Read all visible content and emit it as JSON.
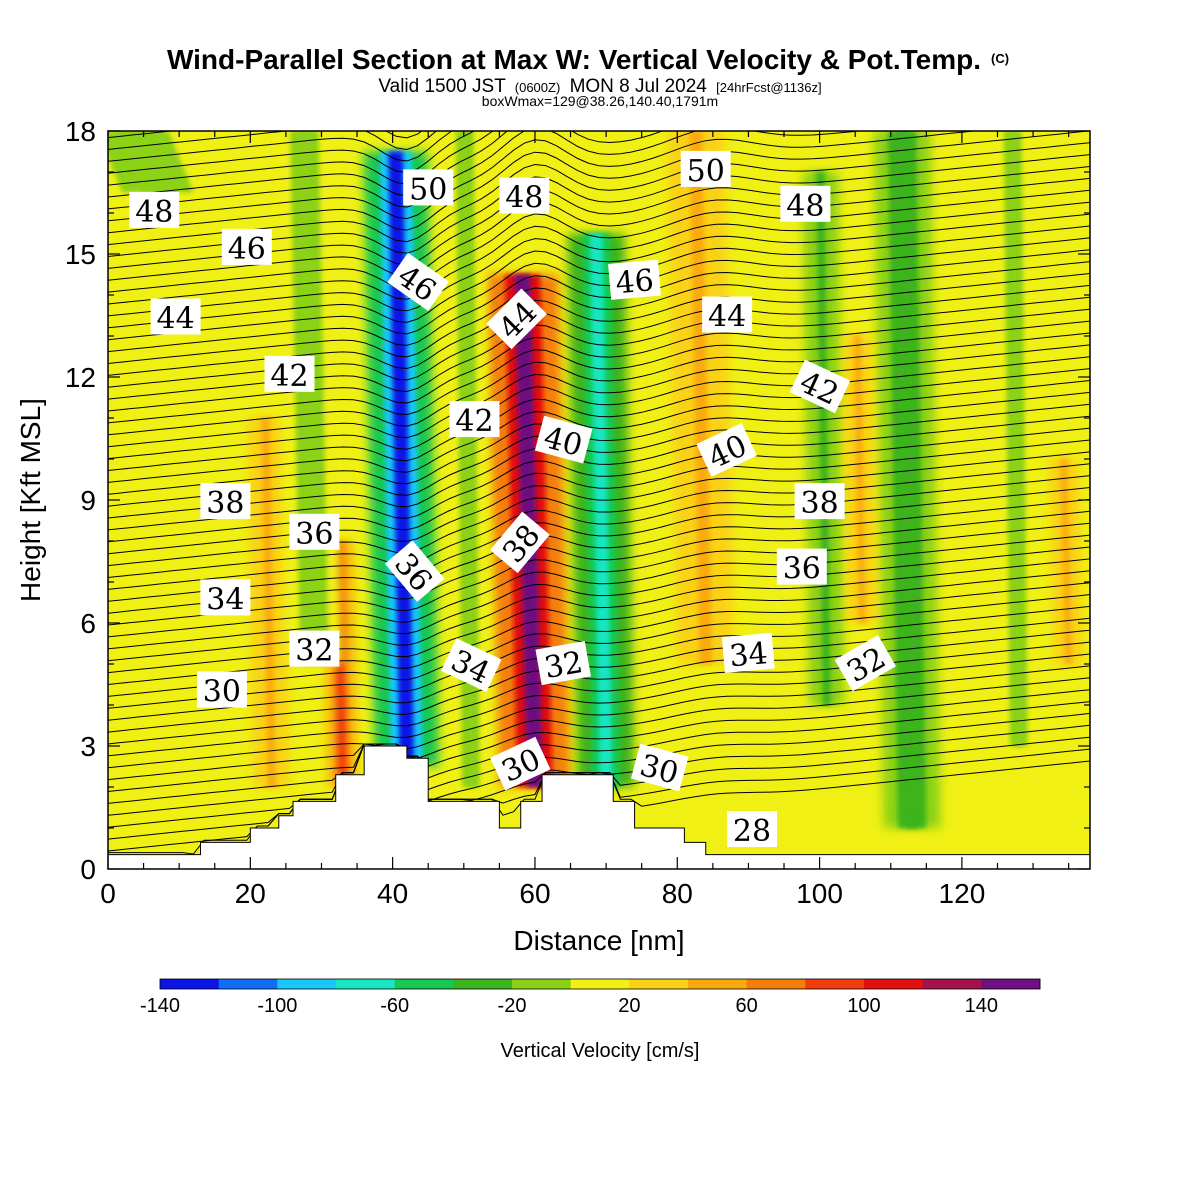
{
  "titles": {
    "main": "Wind-Parallel Section at Max W: Vertical Velocity & Pot.Temp.",
    "copyright": "(C)",
    "valid_a": "Valid 1500 JST",
    "valid_b": "(0600Z)",
    "valid_c": "MON 8 Jul 2024",
    "valid_d": "[24hrFcst@1136z]",
    "box": "boxWmax=129@38.26,140.40,1791m"
  },
  "chart_data": {
    "type": "heatmap",
    "xlabel": "Distance [nm]",
    "ylabel": "Height [Kft MSL]",
    "xlim": [
      0,
      138
    ],
    "ylim": [
      0,
      18
    ],
    "x_ticks": [
      "0",
      "20",
      "40",
      "60",
      "80",
      "100",
      "120"
    ],
    "x_tick_values": [
      0,
      20,
      40,
      60,
      80,
      100,
      120
    ],
    "y_ticks": [
      "0",
      "3",
      "6",
      "9",
      "12",
      "15",
      "18"
    ],
    "y_tick_values": [
      0,
      3,
      6,
      9,
      12,
      15,
      18
    ],
    "colorbar": {
      "label": "Vertical Velocity [cm/s]",
      "levels": [
        -140,
        -120,
        -100,
        -80,
        -60,
        -40,
        -20,
        0,
        20,
        40,
        60,
        80,
        100,
        120,
        140,
        160
      ],
      "tick_values": [
        -140,
        -100,
        -60,
        -20,
        20,
        60,
        100,
        140
      ],
      "tick_labels": [
        "-140",
        "-100",
        "-60",
        "-20",
        "20",
        "60",
        "100",
        "140"
      ],
      "colors": [
        "#0a14e6",
        "#0f6df5",
        "#19c8fa",
        "#19e6c3",
        "#19c850",
        "#3cb41e",
        "#8cd214",
        "#f0f014",
        "#fad214",
        "#faaa0f",
        "#f57d0a",
        "#f03c0a",
        "#e10f0f",
        "#a5124b",
        "#6e0f82"
      ]
    },
    "terrain_profile": [
      [
        0,
        0.35
      ],
      [
        13,
        0.35
      ],
      [
        13,
        0.65
      ],
      [
        20,
        0.65
      ],
      [
        20,
        1.0
      ],
      [
        24,
        1.0
      ],
      [
        24,
        1.3
      ],
      [
        26,
        1.3
      ],
      [
        26,
        1.65
      ],
      [
        32,
        1.65
      ],
      [
        32,
        2.3
      ],
      [
        36,
        2.3
      ],
      [
        36,
        3.0
      ],
      [
        42,
        3.0
      ],
      [
        42,
        2.7
      ],
      [
        45,
        2.7
      ],
      [
        45,
        1.65
      ],
      [
        55,
        1.65
      ],
      [
        55,
        1.0
      ],
      [
        58,
        1.0
      ],
      [
        58,
        1.65
      ],
      [
        61,
        1.65
      ],
      [
        61,
        2.3
      ],
      [
        71,
        2.3
      ],
      [
        71,
        1.65
      ],
      [
        74,
        1.65
      ],
      [
        74,
        1.0
      ],
      [
        81,
        1.0
      ],
      [
        81,
        0.65
      ],
      [
        84,
        0.65
      ],
      [
        84,
        0.35
      ],
      [
        138,
        0.35
      ]
    ],
    "vertical_velocity_features": [
      {
        "center_x": 42,
        "y_range": [
          2.5,
          17.5
        ],
        "width_nm": 4.5,
        "peak_cm_s": -140,
        "halo_cm_s": -60
      },
      {
        "center_x": 60,
        "y_range": [
          2.0,
          14.5
        ],
        "width_nm": 5.0,
        "peak_cm_s": 150,
        "halo_cm_s": 60
      },
      {
        "center_x": 51,
        "y_range": [
          2.0,
          18
        ],
        "width_nm": 2.5,
        "peak_cm_s": -20,
        "halo_cm_s": 0
      },
      {
        "center_x": 70,
        "y_range": [
          2.0,
          15.5
        ],
        "width_nm": 4.0,
        "peak_cm_s": -80,
        "halo_cm_s": -40
      },
      {
        "center_x": 33,
        "y_range": [
          2.0,
          8.0
        ],
        "width_nm": 2.0,
        "peak_cm_s": 90,
        "halo_cm_s": 40
      },
      {
        "center_x": 23,
        "y_range": [
          2.0,
          11.0
        ],
        "width_nm": 2.5,
        "peak_cm_s": 40,
        "halo_cm_s": 20
      },
      {
        "center_x": 29,
        "y_range": [
          5.0,
          18
        ],
        "width_nm": 4.0,
        "peak_cm_s": -20,
        "halo_cm_s": 0
      },
      {
        "center_x": 84,
        "y_range": [
          5.0,
          18
        ],
        "width_nm": 4.0,
        "peak_cm_s": 50,
        "halo_cm_s": 20
      },
      {
        "center_x": 101,
        "y_range": [
          4.0,
          17.0
        ],
        "width_nm": 2.5,
        "peak_cm_s": -30,
        "halo_cm_s": -10
      },
      {
        "center_x": 113,
        "y_range": [
          1.0,
          18
        ],
        "width_nm": 4.0,
        "peak_cm_s": -40,
        "halo_cm_s": -20
      },
      {
        "center_x": 106,
        "y_range": [
          6.0,
          13.0
        ],
        "width_nm": 2.0,
        "peak_cm_s": 40,
        "halo_cm_s": 20
      },
      {
        "center_x": 135,
        "y_range": [
          5.0,
          10.0
        ],
        "width_nm": 2.0,
        "peak_cm_s": 50,
        "halo_cm_s": 20
      },
      {
        "center_x": 128,
        "y_range": [
          3.0,
          18
        ],
        "width_nm": 2.5,
        "peak_cm_s": -20,
        "halo_cm_s": 0
      },
      {
        "center_x": 7,
        "y_range": [
          16.5,
          18
        ],
        "width_nm": 10.0,
        "peak_cm_s": -20,
        "halo_cm_s": 0
      }
    ],
    "theta_contour_labels": [
      {
        "text": "48",
        "x": 6.5,
        "y": 16.05,
        "angle": 0
      },
      {
        "text": "46",
        "x": 19.5,
        "y": 15.15,
        "angle": 0
      },
      {
        "text": "44",
        "x": 9.5,
        "y": 13.45,
        "angle": 0
      },
      {
        "text": "42",
        "x": 25.5,
        "y": 12.05,
        "angle": 0
      },
      {
        "text": "38",
        "x": 16.5,
        "y": 8.95,
        "angle": 0
      },
      {
        "text": "36",
        "x": 29,
        "y": 8.2,
        "angle": 0
      },
      {
        "text": "34",
        "x": 16.5,
        "y": 6.6,
        "angle": 0
      },
      {
        "text": "32",
        "x": 29,
        "y": 5.35,
        "angle": 0
      },
      {
        "text": "30",
        "x": 16,
        "y": 4.35,
        "angle": 0
      },
      {
        "text": "50",
        "x": 45,
        "y": 16.6,
        "angle": 0
      },
      {
        "text": "46",
        "x": 43.5,
        "y": 14.3,
        "angle": 35
      },
      {
        "text": "48",
        "x": 58.5,
        "y": 16.4,
        "angle": 0
      },
      {
        "text": "44",
        "x": 57.5,
        "y": 13.4,
        "angle": -45
      },
      {
        "text": "42",
        "x": 51.5,
        "y": 10.95,
        "angle": 0
      },
      {
        "text": "40",
        "x": 64,
        "y": 10.45,
        "angle": 15
      },
      {
        "text": "38",
        "x": 58,
        "y": 7.95,
        "angle": -50
      },
      {
        "text": "36",
        "x": 43,
        "y": 7.25,
        "angle": 50
      },
      {
        "text": "34",
        "x": 51,
        "y": 4.95,
        "angle": 25
      },
      {
        "text": "32",
        "x": 64,
        "y": 5.0,
        "angle": -10
      },
      {
        "text": "30",
        "x": 58,
        "y": 2.55,
        "angle": -25
      },
      {
        "text": "30",
        "x": 77.5,
        "y": 2.45,
        "angle": 15
      },
      {
        "text": "28",
        "x": 90.5,
        "y": 0.95,
        "angle": 0
      },
      {
        "text": "46",
        "x": 74,
        "y": 14.35,
        "angle": -5
      },
      {
        "text": "50",
        "x": 84,
        "y": 17.05,
        "angle": 0
      },
      {
        "text": "48",
        "x": 98,
        "y": 16.2,
        "angle": 0
      },
      {
        "text": "44",
        "x": 87,
        "y": 13.5,
        "angle": 0
      },
      {
        "text": "42",
        "x": 100,
        "y": 11.75,
        "angle": 25
      },
      {
        "text": "40",
        "x": 87,
        "y": 10.2,
        "angle": -25
      },
      {
        "text": "38",
        "x": 100,
        "y": 8.95,
        "angle": 0
      },
      {
        "text": "36",
        "x": 97.5,
        "y": 7.35,
        "angle": 0
      },
      {
        "text": "34",
        "x": 90,
        "y": 5.25,
        "angle": -5
      },
      {
        "text": "32",
        "x": 106.5,
        "y": 5.0,
        "angle": -30
      }
    ]
  }
}
